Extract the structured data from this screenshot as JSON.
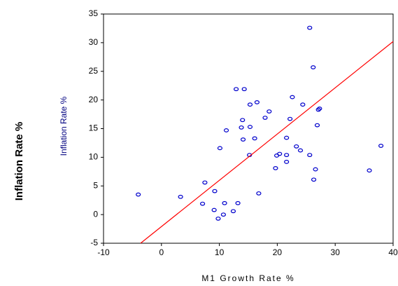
{
  "chart_data": {
    "type": "scatter",
    "ylabel_outer": "Inflation Rate %",
    "ylabel": "Inflation Rate %",
    "xlabel": "M1 Growth Rate %",
    "xlim": [
      -10,
      40
    ],
    "xticks": [
      -10,
      0,
      10,
      20,
      30,
      40
    ],
    "ylim": [
      -5,
      35
    ],
    "yticks": [
      -5,
      0,
      5,
      10,
      15,
      20,
      25,
      30,
      35
    ],
    "series": [
      {
        "color": "#0000cc",
        "x": [
          -4,
          3.3,
          7.5,
          7.1,
          9.2,
          9.1,
          9.8,
          10.1,
          10.9,
          10.7,
          11.2,
          12.4,
          13.2,
          12.9,
          14.3,
          14.0,
          13.8,
          14.1,
          15.2,
          15.3,
          15.3,
          16.1,
          16.5,
          16.8,
          17.9,
          18.6,
          19.7,
          19.9,
          20.4,
          21.6,
          21.6,
          21.6,
          22.2,
          22.6,
          23.3,
          24.0,
          24.4,
          25.6,
          25.6,
          26.2,
          26.3,
          26.6,
          26.9,
          27.1,
          27.3,
          35.9,
          37.9
        ],
        "values": [
          3.5,
          3.1,
          5.6,
          1.9,
          4.1,
          0.8,
          -0.7,
          11.6,
          2.0,
          0.0,
          14.7,
          0.6,
          2.0,
          21.9,
          21.9,
          16.5,
          15.2,
          13.1,
          10.4,
          19.2,
          15.3,
          13.3,
          19.6,
          3.7,
          16.9,
          18.0,
          8.1,
          10.3,
          10.6,
          10.4,
          9.2,
          13.4,
          16.7,
          20.5,
          11.9,
          11.2,
          19.2,
          32.6,
          10.4,
          25.7,
          6.1,
          7.9,
          15.6,
          18.3,
          18.5,
          7.7,
          12.0
        ]
      }
    ],
    "fit_line": {
      "color": "#ff0000",
      "x": [
        -3.6,
        40
      ],
      "values": [
        -5,
        30.2
      ]
    }
  }
}
